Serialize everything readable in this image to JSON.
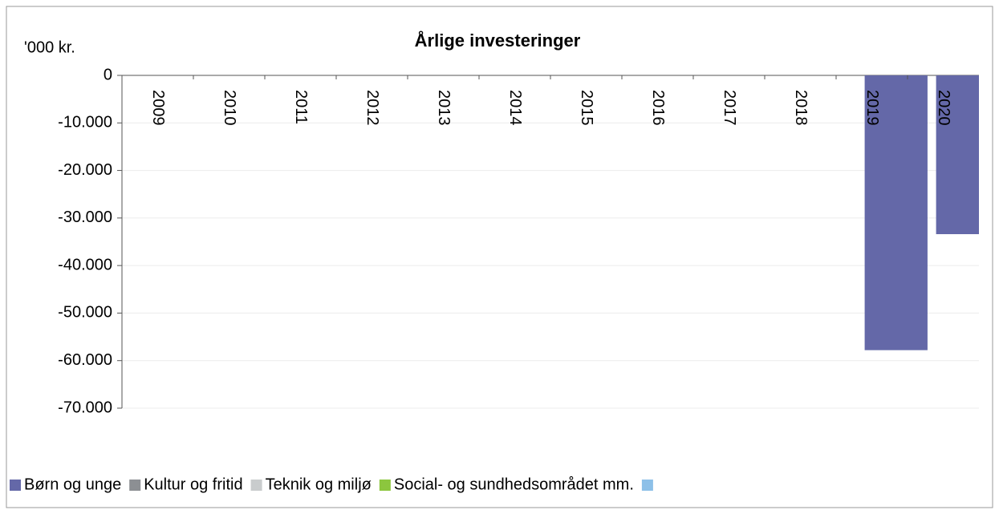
{
  "chart_data": {
    "type": "bar",
    "title": "Årlige investeringer",
    "y_label": "'000 kr.",
    "categories": [
      "2009",
      "2010",
      "2011",
      "2012",
      "2013",
      "2014",
      "2015",
      "2016",
      "2017",
      "2018",
      "2019",
      "2020"
    ],
    "series": [
      {
        "name": "Børn og unge",
        "color": "#6468a8",
        "values": [
          null,
          null,
          null,
          null,
          null,
          null,
          null,
          null,
          null,
          null,
          -57800,
          -33400
        ]
      },
      {
        "name": "Kultur og fritid",
        "color": "#8c8f93",
        "values": [
          null,
          null,
          null,
          null,
          null,
          null,
          null,
          null,
          null,
          null,
          null,
          null
        ]
      },
      {
        "name": "Teknik og miljø",
        "color": "#c9cccd",
        "values": [
          null,
          null,
          null,
          null,
          null,
          null,
          null,
          null,
          null,
          null,
          null,
          null
        ]
      },
      {
        "name": "Social- og sundhedsområdet mm.",
        "color": "#8cc63e",
        "values": [
          null,
          null,
          null,
          null,
          null,
          null,
          null,
          null,
          null,
          null,
          null,
          null
        ]
      },
      {
        "name": null,
        "color": "#8dc0e8",
        "values": [
          null,
          null,
          null,
          null,
          null,
          null,
          null,
          null,
          null,
          null,
          null,
          null
        ]
      }
    ],
    "ylim": [
      -70000,
      0
    ],
    "yticks": [
      0,
      {
        "value": -10000,
        "label": "-10.000"
      },
      {
        "value": -20000,
        "label": "-20.000"
      },
      {
        "value": -30000,
        "label": "-30.000"
      },
      {
        "value": -40000,
        "label": "-40.000"
      },
      {
        "value": -50000,
        "label": "-50.000"
      },
      {
        "value": -60000,
        "label": "-60.000"
      },
      {
        "value": -70000,
        "label": "-70.000"
      }
    ],
    "grid": true
  }
}
